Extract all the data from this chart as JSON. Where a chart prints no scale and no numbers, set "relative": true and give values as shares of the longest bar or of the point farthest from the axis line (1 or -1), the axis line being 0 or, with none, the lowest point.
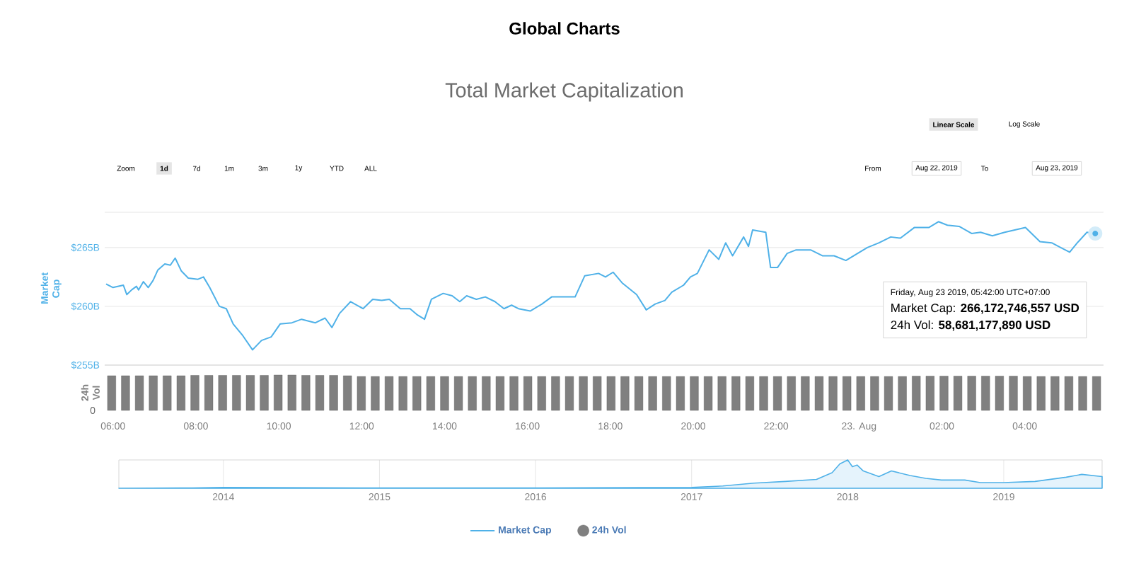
{
  "chart_data": [
    {
      "type": "line",
      "title": "Global Charts",
      "subtitle": "Total Market Capitalization",
      "ylabel": "Market Cap",
      "series": [
        {
          "name": "Market Cap",
          "color": "#4fb1e8",
          "x": [
            "2019-08-22T05:50",
            "2019-08-22T06:00",
            "2019-08-22T06:15",
            "2019-08-22T06:20",
            "2019-08-22T06:27",
            "2019-08-22T06:34",
            "2019-08-22T06:37",
            "2019-08-22T06:44",
            "2019-08-22T06:51",
            "2019-08-22T06:58",
            "2019-08-22T07:05",
            "2019-08-22T07:15",
            "2019-08-22T07:23",
            "2019-08-22T07:30",
            "2019-08-22T07:39",
            "2019-08-22T07:49",
            "2019-08-22T08:03",
            "2019-08-22T08:11",
            "2019-08-22T08:20",
            "2019-08-22T08:34",
            "2019-08-22T08:44",
            "2019-08-22T08:54",
            "2019-08-22T09:08",
            "2019-08-22T09:22",
            "2019-08-22T09:35",
            "2019-08-22T09:49",
            "2019-08-22T10:02",
            "2019-08-22T10:19",
            "2019-08-22T10:33",
            "2019-08-22T10:53",
            "2019-08-22T11:07",
            "2019-08-22T11:17",
            "2019-08-22T11:28",
            "2019-08-22T11:44",
            "2019-08-22T12:02",
            "2019-08-22T12:16",
            "2019-08-22T12:29",
            "2019-08-22T12:40",
            "2019-08-22T12:56",
            "2019-08-22T13:10",
            "2019-08-22T13:20",
            "2019-08-22T13:31",
            "2019-08-22T13:41",
            "2019-08-22T13:58",
            "2019-08-22T14:11",
            "2019-08-22T14:22",
            "2019-08-22T14:32",
            "2019-08-22T14:46",
            "2019-08-22T14:59",
            "2019-08-22T15:13",
            "2019-08-22T15:26",
            "2019-08-22T15:37",
            "2019-08-22T15:47",
            "2019-08-22T16:04",
            "2019-08-22T16:21",
            "2019-08-22T16:35",
            "2019-08-22T16:55",
            "2019-08-22T17:09",
            "2019-08-22T17:23",
            "2019-08-22T17:43",
            "2019-08-22T17:53",
            "2019-08-22T18:04",
            "2019-08-22T18:17",
            "2019-08-22T18:38",
            "2019-08-22T18:52",
            "2019-08-22T19:05",
            "2019-08-22T19:19",
            "2019-08-22T19:29",
            "2019-08-22T19:46",
            "2019-08-22T19:56",
            "2019-08-22T20:06",
            "2019-08-22T20:23",
            "2019-08-22T20:37",
            "2019-08-22T20:47",
            "2019-08-22T20:57",
            "2019-08-22T21:13",
            "2019-08-22T21:20",
            "2019-08-22T21:26",
            "2019-08-22T21:45",
            "2019-08-22T21:52",
            "2019-08-22T22:02",
            "2019-08-22T22:16",
            "2019-08-22T22:29",
            "2019-08-22T22:50",
            "2019-08-22T23:07",
            "2019-08-22T23:24",
            "2019-08-22T23:41",
            "2019-08-22T23:55",
            "2019-08-23T00:12",
            "2019-08-23T00:29",
            "2019-08-23T00:46",
            "2019-08-23T01:00",
            "2019-08-23T01:20",
            "2019-08-23T01:41",
            "2019-08-23T01:55",
            "2019-08-23T02:08",
            "2019-08-23T02:25",
            "2019-08-23T02:43",
            "2019-08-23T02:56",
            "2019-08-23T03:13",
            "2019-08-23T03:31",
            "2019-08-23T04:01",
            "2019-08-23T04:22",
            "2019-08-23T04:39",
            "2019-08-23T04:52",
            "2019-08-23T05:05",
            "2019-08-23T05:16",
            "2019-08-23T05:30",
            "2019-08-23T05:42"
          ],
          "values": [
            261.9,
            261.6,
            261.8,
            261.0,
            261.4,
            261.7,
            261.4,
            262.1,
            261.6,
            262.2,
            263.1,
            263.6,
            263.5,
            264.1,
            263.0,
            262.4,
            262.3,
            262.5,
            261.6,
            260.0,
            259.8,
            258.5,
            257.5,
            256.3,
            257.1,
            257.4,
            258.5,
            258.6,
            258.9,
            258.6,
            259.0,
            258.2,
            259.4,
            260.4,
            259.8,
            260.6,
            260.5,
            260.6,
            259.8,
            259.8,
            259.3,
            258.9,
            260.6,
            261.1,
            260.9,
            260.4,
            260.9,
            260.6,
            260.8,
            260.4,
            259.8,
            260.1,
            259.8,
            259.6,
            260.2,
            260.8,
            260.8,
            260.8,
            262.6,
            262.8,
            262.5,
            262.9,
            262.0,
            261.0,
            259.7,
            260.2,
            260.5,
            261.2,
            261.8,
            262.5,
            262.8,
            264.8,
            264.0,
            265.4,
            264.3,
            265.9,
            265.1,
            266.5,
            266.3,
            263.3,
            263.3,
            264.5,
            264.8,
            264.8,
            264.3,
            264.3,
            263.9,
            264.4,
            265.0,
            265.4,
            265.9,
            265.8,
            266.7,
            266.7,
            267.2,
            266.9,
            266.8,
            266.2,
            266.3,
            266.0,
            266.3,
            266.7,
            265.5,
            265.4,
            265.0,
            264.6,
            265.4,
            266.3,
            266.2
          ]
        }
      ],
      "xlim": [
        "2019-08-22T05:48",
        "2019-08-23T05:54"
      ],
      "ylim": [
        255,
        268
      ],
      "xticks": [
        {
          "value": "2019-08-22T06:00",
          "label": "06:00"
        },
        {
          "value": "2019-08-22T08:00",
          "label": "08:00"
        },
        {
          "value": "2019-08-22T10:00",
          "label": "10:00"
        },
        {
          "value": "2019-08-22T12:00",
          "label": "12:00"
        },
        {
          "value": "2019-08-22T14:00",
          "label": "14:00"
        },
        {
          "value": "2019-08-22T16:00",
          "label": "16:00"
        },
        {
          "value": "2019-08-22T18:00",
          "label": "18:00"
        },
        {
          "value": "2019-08-22T20:00",
          "label": "20:00"
        },
        {
          "value": "2019-08-22T22:00",
          "label": "22:00"
        },
        {
          "value": "2019-08-23T00:00",
          "label": "23. Aug"
        },
        {
          "value": "2019-08-23T02:00",
          "label": "02:00"
        },
        {
          "value": "2019-08-23T04:00",
          "label": "04:00"
        }
      ],
      "yticks": [
        {
          "value": 255,
          "label": "$255B"
        },
        {
          "value": 260,
          "label": "$260B"
        },
        {
          "value": 265,
          "label": "$265B"
        }
      ],
      "grid": "y",
      "legend": "bottom",
      "annotations": [
        "Zoom",
        "1d",
        "7d",
        "1m",
        "3m",
        "1y",
        "YTD",
        "ALL",
        "From",
        "Aug 22, 2019",
        "To",
        "Aug 23, 2019",
        "Linear Scale",
        "Log Scale",
        "Friday, Aug 23 2019, 05:42:00 UTC+07:00",
        "Market Cap: **266,172,746,557 USD**",
        "24h Vol: **58,681,177,890 USD**"
      ]
    },
    {
      "type": "bar",
      "ylabel": "24h Vol",
      "relative": true,
      "legend": "bottom",
      "annotations": [
        "0"
      ],
      "categories": [
        null,
        null,
        null,
        null,
        null,
        null,
        null,
        null,
        null,
        null,
        null,
        null,
        null,
        null,
        null,
        null,
        null,
        null,
        null,
        null,
        null,
        null,
        null,
        null,
        null,
        null,
        null,
        null,
        null,
        null,
        null,
        null,
        null,
        null,
        null,
        null,
        null,
        null,
        null,
        null,
        null,
        null,
        null,
        null,
        null,
        null,
        null,
        null,
        null,
        null,
        null,
        null,
        null,
        null,
        null,
        null,
        null,
        null,
        null,
        null,
        null,
        null,
        null,
        null,
        null,
        null,
        null,
        null,
        null,
        null,
        null,
        null
      ],
      "series": [
        {
          "name": "24h Vol",
          "color": "#808080",
          "values": [
            0.98,
            0.98,
            0.98,
            0.98,
            0.98,
            0.98,
            0.99,
            0.99,
            0.99,
            0.99,
            0.99,
            0.99,
            1.0,
            1.0,
            0.99,
            0.99,
            0.99,
            0.98,
            0.96,
            0.96,
            0.96,
            0.96,
            0.96,
            0.96,
            0.96,
            0.96,
            0.96,
            0.96,
            0.96,
            0.96,
            0.96,
            0.96,
            0.96,
            0.96,
            0.96,
            0.96,
            0.96,
            0.96,
            0.96,
            0.96,
            0.96,
            0.96,
            0.96,
            0.96,
            0.96,
            0.96,
            0.96,
            0.96,
            0.96,
            0.96,
            0.96,
            0.96,
            0.96,
            0.96,
            0.96,
            0.96,
            0.96,
            0.96,
            0.97,
            0.97,
            0.97,
            0.97,
            0.97,
            0.97,
            0.97,
            0.97,
            0.96,
            0.96,
            0.96,
            0.96,
            0.96,
            0.96
          ]
        }
      ]
    },
    {
      "type": "area",
      "relative": true,
      "grid": "x",
      "xlim": [
        2013.33,
        2019.63
      ],
      "xticks": [
        2014,
        2015,
        2016,
        2017,
        2018,
        2019
      ],
      "series": [
        {
          "color": "#4fb1e8",
          "x": [
            2013.33,
            2013.8,
            2014.0,
            2014.5,
            2015.0,
            2015.5,
            2016.0,
            2016.5,
            2017.0,
            2017.2,
            2017.4,
            2017.6,
            2017.8,
            2017.9,
            2017.95,
            2018.0,
            2018.03,
            2018.06,
            2018.1,
            2018.2,
            2018.28,
            2018.4,
            2018.5,
            2018.6,
            2018.75,
            2018.85,
            2019.0,
            2019.2,
            2019.4,
            2019.5,
            2019.63
          ],
          "values": [
            0.0,
            0.01,
            0.03,
            0.02,
            0.01,
            0.01,
            0.01,
            0.02,
            0.03,
            0.08,
            0.18,
            0.24,
            0.31,
            0.55,
            0.86,
            1.0,
            0.76,
            0.82,
            0.61,
            0.41,
            0.61,
            0.45,
            0.35,
            0.29,
            0.29,
            0.2,
            0.2,
            0.24,
            0.39,
            0.49,
            0.41
          ]
        }
      ]
    }
  ]
}
